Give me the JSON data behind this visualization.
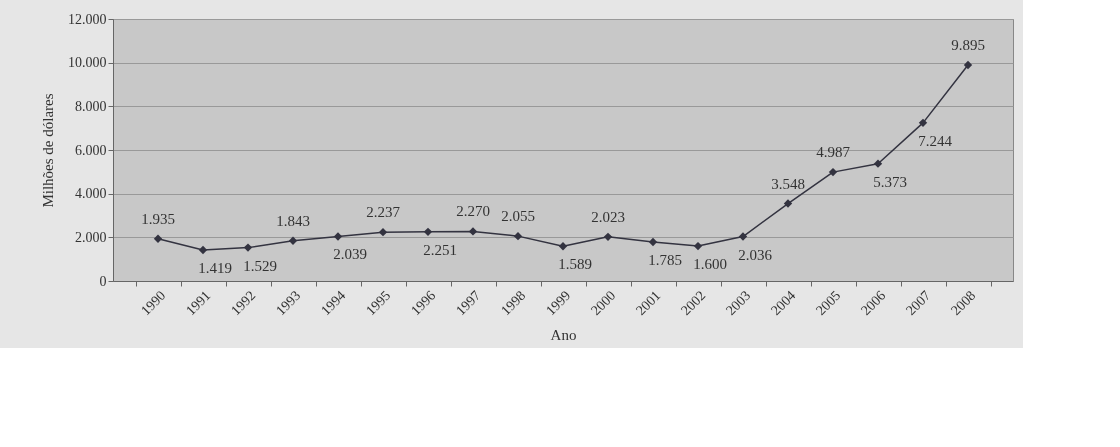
{
  "chart_data": {
    "type": "line",
    "xlabel": "Ano",
    "ylabel": "Milhões de dólares",
    "categories": [
      "1990",
      "1991",
      "1992",
      "1993",
      "1994",
      "1995",
      "1996",
      "1997",
      "1998",
      "1999",
      "2000",
      "2001",
      "2002",
      "2003",
      "2004",
      "2005",
      "2006",
      "2007",
      "2008"
    ],
    "series": [
      {
        "color": "#333340",
        "values": [
          1935,
          1419,
          1529,
          1843,
          2039,
          2237,
          2251,
          2270,
          2055,
          1589,
          2023,
          1785,
          1600,
          2036,
          3548,
          4987,
          5373,
          7244,
          9895
        ],
        "value_labels": [
          "1.935",
          "1.419",
          "1.529",
          "1.843",
          "2.039",
          "2.237",
          "2.251",
          "2.270",
          "2.055",
          "1.589",
          "2.023",
          "1.785",
          "1.600",
          "2.036",
          "3.548",
          "4.987",
          "5.373",
          "7.244",
          "9.895"
        ]
      }
    ],
    "ylim": [
      0,
      12000
    ],
    "yticks": [
      {
        "value": 0,
        "label": "0"
      },
      {
        "value": 2000,
        "label": "2.000"
      },
      {
        "value": 4000,
        "label": "4.000"
      },
      {
        "value": 6000,
        "label": "6.000"
      },
      {
        "value": 8000,
        "label": "8.000"
      },
      {
        "value": 10000,
        "label": "10.000"
      },
      {
        "value": 12000,
        "label": "12.000"
      }
    ],
    "grid": "y",
    "marker": "diamond",
    "line_style": "solid"
  }
}
